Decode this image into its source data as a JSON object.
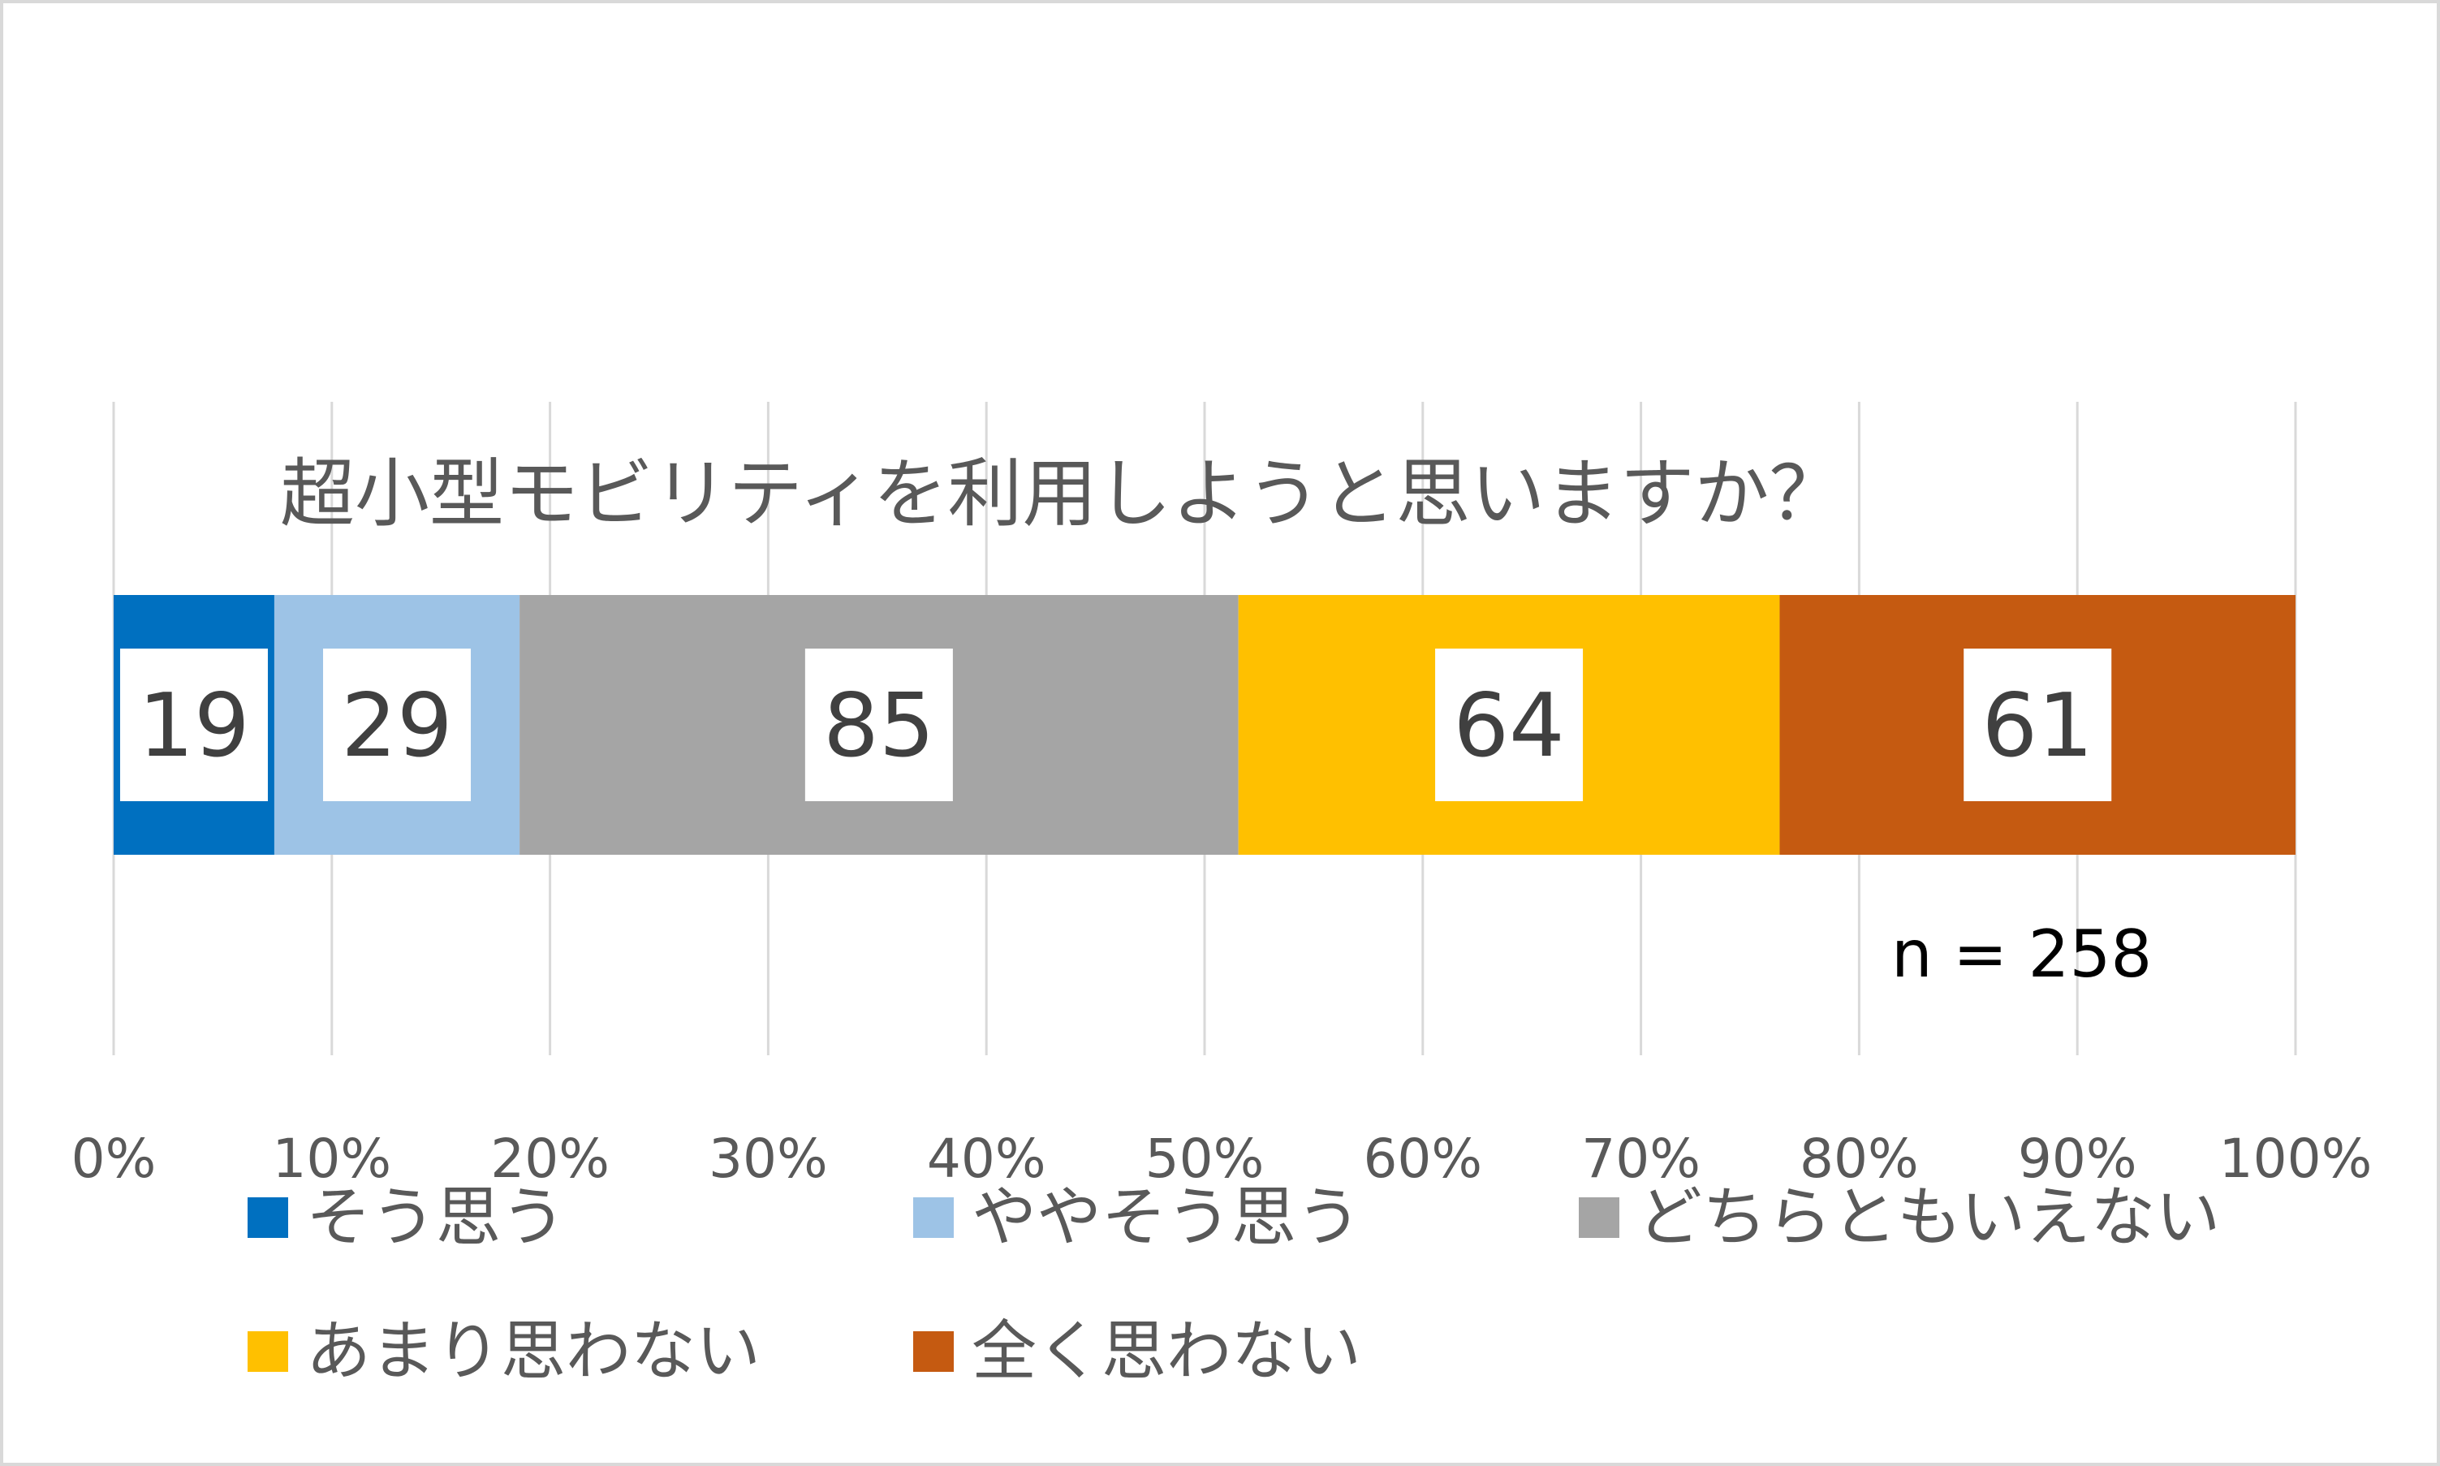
{
  "chart_data": {
    "type": "bar",
    "orientation": "horizontal",
    "stacked": "percent",
    "title": "超小型モビリティを利用しようと思いますか？",
    "note": "n = 258",
    "categories": [
      ""
    ],
    "series": [
      {
        "name": "そう思う",
        "values": [
          19
        ],
        "color": "#0070C0"
      },
      {
        "name": "ややそう思う",
        "values": [
          29
        ],
        "color": "#9DC3E6"
      },
      {
        "name": "どちらともいえない",
        "values": [
          85
        ],
        "color": "#A5A5A5"
      },
      {
        "name": "あまり思わない",
        "values": [
          64
        ],
        "color": "#FFC000"
      },
      {
        "name": "全く思わない",
        "values": [
          61
        ],
        "color": "#C55A11"
      }
    ],
    "xlim": [
      0,
      100
    ],
    "xticks": [
      "0%",
      "10%",
      "20%",
      "30%",
      "40%",
      "50%",
      "60%",
      "70%",
      "80%",
      "90%",
      "100%"
    ],
    "grid": true,
    "legend": "bottom"
  }
}
